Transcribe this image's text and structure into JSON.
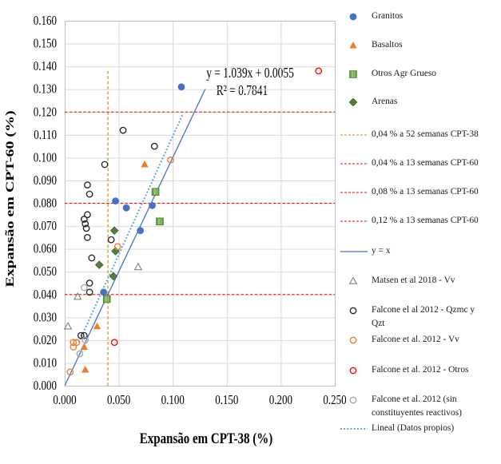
{
  "annotation": {
    "line1": "y = 1.039x + 0.0055",
    "line2": "R² = 0.7841"
  },
  "chart_data": {
    "type": "scatter",
    "xlabel": "Expansão em CPT-38 (%)",
    "ylabel": "Expansão em CPT-60 (%)",
    "xlim": [
      0,
      0.25
    ],
    "ylim": [
      0,
      0.16
    ],
    "x_tick_step": 0.05,
    "y_tick_step": 0.01,
    "x_ticks": [
      "0.000",
      "0.050",
      "0.100",
      "0.150",
      "0.200",
      "0.250"
    ],
    "y_ticks": [
      "0.000",
      "0.010",
      "0.020",
      "0.030",
      "0.040",
      "0.050",
      "0.060",
      "0.070",
      "0.080",
      "0.090",
      "0.100",
      "0.110",
      "0.120",
      "0.130",
      "0.140",
      "0.150",
      "0.160"
    ],
    "grid": true,
    "series": [
      {
        "id": "granitos",
        "name": "Granitos",
        "marker": "circle",
        "color": "#4472C4",
        "points": [
          [
            0.108,
            0.131
          ],
          [
            0.047,
            0.081
          ],
          [
            0.057,
            0.078
          ],
          [
            0.081,
            0.079
          ],
          [
            0.07,
            0.068
          ],
          [
            0.036,
            0.041
          ]
        ]
      },
      {
        "id": "basaltos",
        "name": "Basaltos",
        "marker": "triangle",
        "color": "#ED7D31",
        "points": [
          [
            0.074,
            0.097
          ],
          [
            0.03,
            0.026
          ],
          [
            0.018,
            0.017
          ],
          [
            0.019,
            0.007
          ]
        ]
      },
      {
        "id": "otros-agr-grueso",
        "name": "Otros Agr Grueso",
        "marker": "square",
        "color": "#70AD47",
        "stroke": "#507E32",
        "accent": "#A9D18E",
        "points": [
          [
            0.084,
            0.085
          ],
          [
            0.088,
            0.072
          ],
          [
            0.039,
            0.038
          ]
        ]
      },
      {
        "id": "arenas",
        "name": "Arenas",
        "marker": "diamond",
        "color": "#548235",
        "stroke": "#375623",
        "points": [
          [
            0.046,
            0.068
          ],
          [
            0.047,
            0.059
          ],
          [
            0.045,
            0.048
          ],
          [
            0.032,
            0.053
          ]
        ]
      },
      {
        "id": "matsen",
        "name": "Matsen et al 2018 - Vv",
        "marker": "triangle-open",
        "color": "#808080",
        "points": [
          [
            0.003,
            0.026
          ],
          [
            0.012,
            0.039
          ],
          [
            0.068,
            0.052
          ]
        ]
      },
      {
        "id": "falcone-qzmc",
        "name": "Falcone el al 2012 - Qzmc y Qzt",
        "marker": "circle-open",
        "color": "#262626",
        "points": [
          [
            0.054,
            0.112
          ],
          [
            0.083,
            0.105
          ],
          [
            0.037,
            0.097
          ],
          [
            0.021,
            0.088
          ],
          [
            0.023,
            0.084
          ],
          [
            0.021,
            0.075
          ],
          [
            0.018,
            0.073
          ],
          [
            0.019,
            0.071
          ],
          [
            0.02,
            0.069
          ],
          [
            0.021,
            0.065
          ],
          [
            0.043,
            0.064
          ],
          [
            0.025,
            0.056
          ],
          [
            0.023,
            0.045
          ],
          [
            0.023,
            0.041
          ],
          [
            0.015,
            0.022
          ],
          [
            0.018,
            0.022
          ]
        ]
      },
      {
        "id": "falcone-vv",
        "name": "Falcone et al. 2012 - Vv",
        "marker": "circle-open",
        "color": "#ED7D31",
        "points": [
          [
            0.098,
            0.099
          ],
          [
            0.049,
            0.061
          ],
          [
            0.008,
            0.019
          ],
          [
            0.011,
            0.019
          ],
          [
            0.008,
            0.017
          ],
          [
            0.005,
            0.006
          ]
        ]
      },
      {
        "id": "falcone-otros",
        "name": "Falcone et al. 2012 - Otros",
        "marker": "circle-open",
        "color": "#FF0000",
        "points": [
          [
            0.235,
            0.138
          ],
          [
            0.046,
            0.019
          ]
        ]
      },
      {
        "id": "falcone-sin",
        "name": "Falcone et al. 2012 (sin constituyentes reactivos)",
        "marker": "circle-open",
        "color": "#A6A6A6",
        "points": [
          [
            0.018,
            0.043
          ],
          [
            0.019,
            0.02
          ],
          [
            0.014,
            0.014
          ]
        ]
      }
    ],
    "ref_lines": [
      {
        "id": "cpt38-limit",
        "orient": "v",
        "value": 0.04,
        "span": [
          0,
          0.139
        ],
        "color": "#BF8F00",
        "dash": "3.8 2.6",
        "width": 1.1,
        "label": "0,04 % a 52 semanas CPT-38"
      },
      {
        "id": "cpt60-004",
        "orient": "h",
        "value": 0.04,
        "span": [
          0,
          0.25
        ],
        "color": "#FF0000",
        "dash": "3.5 2.3",
        "width": 1.1,
        "label": "0,04 % a 13 semanas CPT-60"
      },
      {
        "id": "cpt60-008",
        "orient": "h",
        "value": 0.08,
        "span": [
          0,
          0.25
        ],
        "color": "#FF0000",
        "dash": "3.5 2.3",
        "width": 1.1,
        "label": "0,08 % a 13 semanas CPT-60"
      },
      {
        "id": "cpt60-012",
        "orient": "h",
        "value": 0.12,
        "span": [
          0,
          0.25
        ],
        "color": "#FF0000",
        "dash": "3.5 2.3",
        "width": 1.1,
        "label": "0,12 % a 13 semanas CPT-60"
      }
    ],
    "identity_line": {
      "label": "y = x",
      "color": "#4472C4",
      "x_range": [
        0,
        0.13
      ]
    },
    "trendline": {
      "label": "Lineal (Datos propios)",
      "slope": 1.039,
      "intercept": 0.0055,
      "r2": 0.7841,
      "color": "#5B9BD5",
      "x_range": [
        0.013,
        0.109
      ]
    }
  },
  "legend": {
    "items": [
      {
        "id": "granitos",
        "label": "Granitos",
        "swatch": "circle",
        "color": "#4472C4"
      },
      {
        "id": "basaltos",
        "label": "Basaltos",
        "swatch": "triangle",
        "color": "#ED7D31"
      },
      {
        "id": "otros-agr-grueso",
        "label": "Otros Agr Grueso",
        "swatch": "square",
        "color": "#70AD47",
        "stroke": "#507E32",
        "accent": "#A9D18E"
      },
      {
        "id": "arenas",
        "label": "Arenas",
        "swatch": "diamond",
        "color": "#548235",
        "stroke": "#375623"
      },
      {
        "id": "cpt38-limit",
        "label": "0,04 % a 52 semanas CPT-38",
        "swatch": "dash-line",
        "color": "#BF8F00"
      },
      {
        "id": "cpt60-004",
        "label": "0,04 % a 13 semanas CPT-60",
        "swatch": "dash-line",
        "color": "#FF0000"
      },
      {
        "id": "cpt60-008",
        "label": "0,08 % a 13 semanas CPT-60",
        "swatch": "dash-line",
        "color": "#FF0000"
      },
      {
        "id": "cpt60-012",
        "label": "0,12 % a 13 semanas CPT-60",
        "swatch": "dash-line",
        "color": "#FF0000"
      },
      {
        "id": "y-equals-x",
        "label": "y = x",
        "swatch": "solid-line",
        "color": "#4472C4"
      },
      {
        "id": "matsen",
        "label": "Matsen et al 2018 - Vv",
        "swatch": "triangle-open",
        "color": "#808080"
      },
      {
        "id": "falcone-qzmc",
        "label": "Falcone el al 2012 - Qzmc y Qzt",
        "swatch": "circle-open",
        "color": "#262626"
      },
      {
        "id": "falcone-vv",
        "label": "Falcone et al. 2012 - Vv",
        "swatch": "circle-open",
        "color": "#ED7D31"
      },
      {
        "id": "falcone-otros",
        "label": "Falcone et al. 2012 - Otros",
        "swatch": "circle-open",
        "color": "#FF0000"
      },
      {
        "id": "falcone-sin",
        "label": "Falcone et al. 2012 (sin constituyentes reactivos)",
        "swatch": "circle-open",
        "color": "#A6A6A6"
      },
      {
        "id": "lineal",
        "label": "Lineal (Datos propios)",
        "swatch": "dotted-line",
        "color": "#5B9BD5"
      }
    ]
  }
}
